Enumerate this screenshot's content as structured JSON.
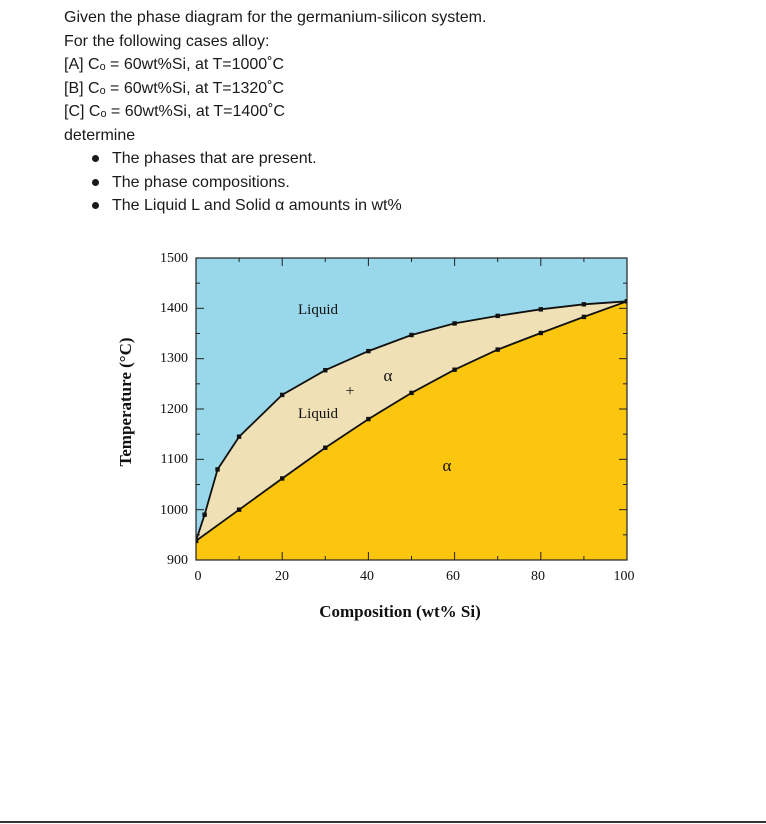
{
  "problem": {
    "intro": "Given the phase diagram for the germanium-silicon system.",
    "prompt": "For the following cases alloy:",
    "cases": [
      "[A] Cₒ = 60wt%Si, at T=1000˚C",
      "[B] Cₒ = 60wt%Si, at T=1320˚C",
      "[C] Cₒ = 60wt%Si, at T=1400˚C"
    ],
    "determine": "determine",
    "tasks": [
      "The phases that are present.",
      "The phase compositions.",
      "The Liquid L and Solid α amounts in wt%"
    ]
  },
  "chart_data": {
    "type": "phase-diagram",
    "xlabel": "Composition (wt% Si)",
    "ylabel": "Temperature (°C)",
    "xlim": [
      0,
      100
    ],
    "ylim": [
      900,
      1500
    ],
    "x_ticks": [
      "0",
      "20",
      "40",
      "60",
      "80",
      "100"
    ],
    "y_ticks": [
      "900",
      "1000",
      "1100",
      "1200",
      "1300",
      "1400",
      "1500"
    ],
    "liquidus": [
      {
        "x": 0,
        "y": 938
      },
      {
        "x": 2,
        "y": 990
      },
      {
        "x": 5,
        "y": 1080
      },
      {
        "x": 10,
        "y": 1145
      },
      {
        "x": 20,
        "y": 1228
      },
      {
        "x": 30,
        "y": 1277
      },
      {
        "x": 40,
        "y": 1315
      },
      {
        "x": 50,
        "y": 1347
      },
      {
        "x": 60,
        "y": 1370
      },
      {
        "x": 70,
        "y": 1385
      },
      {
        "x": 80,
        "y": 1398
      },
      {
        "x": 90,
        "y": 1408
      },
      {
        "x": 100,
        "y": 1414
      }
    ],
    "solidus": [
      {
        "x": 0,
        "y": 938
      },
      {
        "x": 10,
        "y": 1000
      },
      {
        "x": 20,
        "y": 1062
      },
      {
        "x": 30,
        "y": 1123
      },
      {
        "x": 40,
        "y": 1180
      },
      {
        "x": 50,
        "y": 1232
      },
      {
        "x": 60,
        "y": 1278
      },
      {
        "x": 70,
        "y": 1318
      },
      {
        "x": 80,
        "y": 1351
      },
      {
        "x": 90,
        "y": 1383
      },
      {
        "x": 100,
        "y": 1414
      }
    ],
    "region_labels": {
      "liquid": "Liquid",
      "two_phase_top": "α",
      "two_phase_plus": "+",
      "two_phase_bottom": "Liquid",
      "solid": "α"
    },
    "colors": {
      "liquid": "#98d8ea",
      "two_phase": "#efe0b6",
      "solid": "#fcc50e",
      "lines": "#111111"
    }
  }
}
